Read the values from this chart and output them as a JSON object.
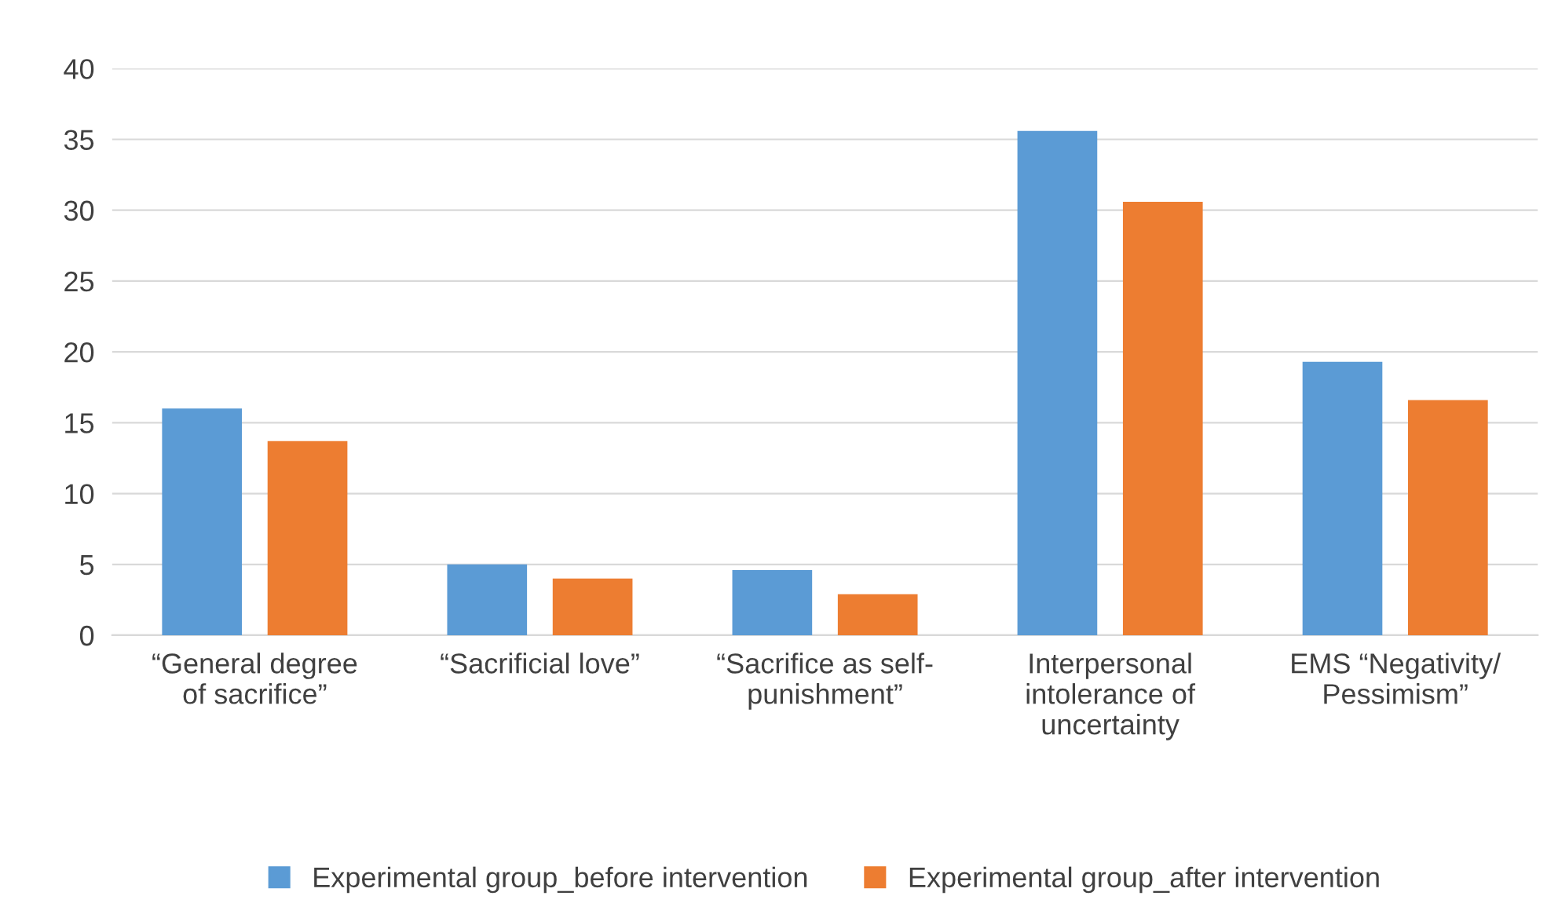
{
  "chart_data": {
    "type": "bar",
    "categories": [
      "“General degree\nof sacrifice”",
      "“Sacrificial love”",
      "“Sacrifice as self-\npunishment”",
      "Interpersonal\nintolerance of\nuncertainty",
      "EMS “Negativity/\nPessimism”"
    ],
    "series": [
      {
        "name": "Experimental group_before intervention",
        "color": "#5b9bd5",
        "values": [
          16.0,
          5.0,
          4.6,
          35.6,
          19.3
        ]
      },
      {
        "name": "Experimental group_after intervention",
        "color": "#ed7d31",
        "values": [
          13.7,
          4.0,
          2.9,
          30.6,
          16.6
        ]
      }
    ],
    "ylim": [
      0,
      40
    ],
    "yticks": [
      0,
      5,
      10,
      15,
      20,
      25,
      30,
      35,
      40
    ],
    "grid": "y",
    "legend": "bottom"
  }
}
